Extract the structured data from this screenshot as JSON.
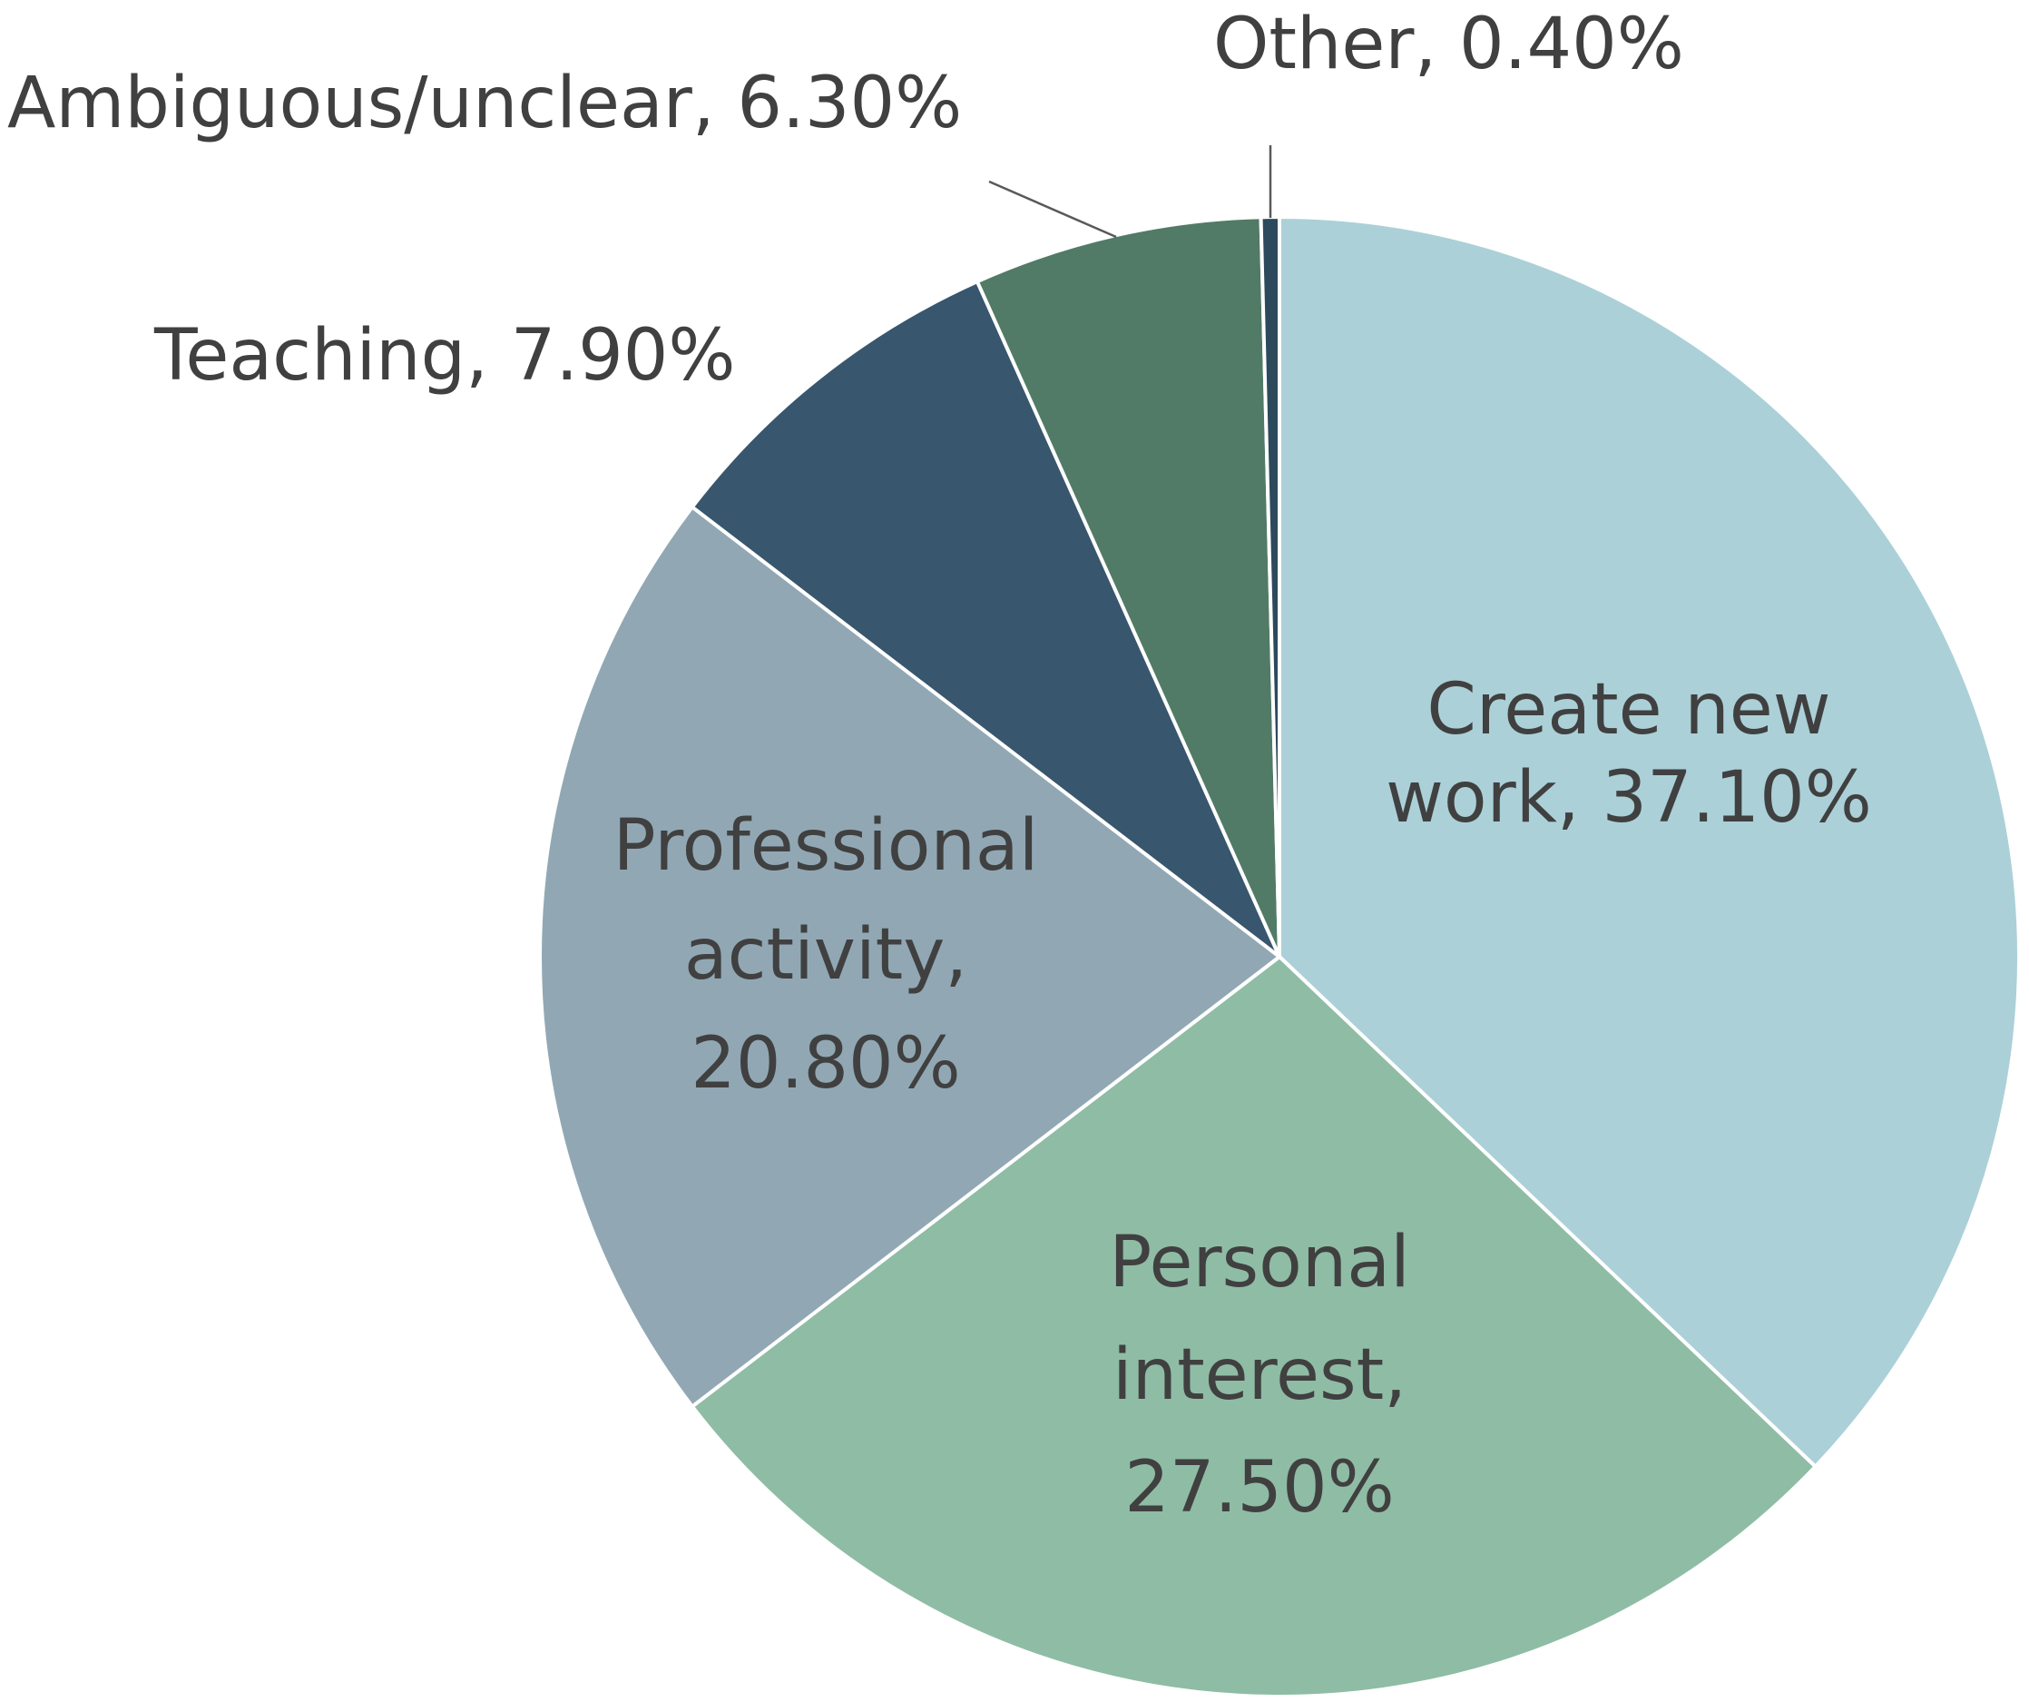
{
  "chart_data": {
    "type": "pie",
    "title": "",
    "start_angle_deg": 0,
    "direction": "clockwise",
    "legend": "none",
    "slices": [
      {
        "name": "Create new work",
        "value": 37.1,
        "display": "Create new work, 37.10%",
        "lines": [
          "Create new",
          "work, 37.10%"
        ],
        "label_position": "inside",
        "color": "#abd0d8"
      },
      {
        "name": "Personal interest",
        "value": 27.5,
        "display": "Personal interest, 27.50%",
        "lines": [
          "Personal",
          "interest,",
          "27.50%"
        ],
        "label_position": "inside",
        "color": "#8fbca5"
      },
      {
        "name": "Professional activity",
        "value": 20.8,
        "display": "Professional activity, 20.80%",
        "lines": [
          "Professional",
          "activity,",
          "20.80%"
        ],
        "label_position": "inside",
        "color": "#91a8b4"
      },
      {
        "name": "Teaching",
        "value": 7.9,
        "display": "Teaching, 7.90%",
        "lines": [
          "Teaching, 7.90%"
        ],
        "label_position": "outside",
        "color": "#38566d"
      },
      {
        "name": "Ambiguous/unclear",
        "value": 6.3,
        "display": "Ambiguous/unclear, 6.30%",
        "lines": [
          "Ambiguous/unclear, 6.30%"
        ],
        "label_position": "outside",
        "color": "#517b67"
      },
      {
        "name": "Other",
        "value": 0.4,
        "display": "Other, 0.40%",
        "lines": [
          "Other, 0.40%"
        ],
        "label_position": "outside",
        "color": "#2c4a5c"
      }
    ]
  }
}
